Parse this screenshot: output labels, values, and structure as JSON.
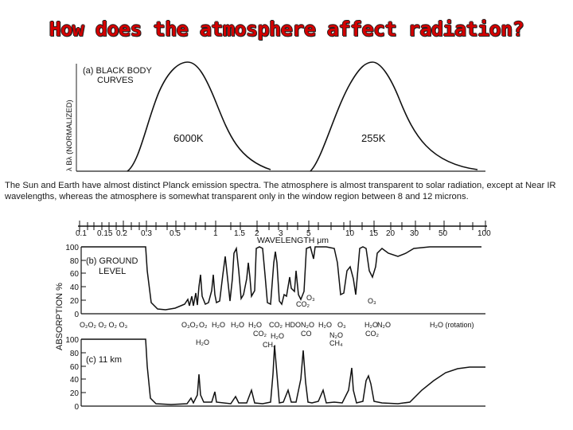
{
  "title": "How does the atmosphere affect radiation?",
  "caption": "The Sun and Earth have almost distinct Planck emission spectra.  The atmosphere is almost transparent to solar radiation, except at Near IR wavelengths, whereas the atmosphere is somewhat transparent only in the window region between 8 and 12 microns.",
  "panel_a": {
    "label": "(a)  BLACK BODY",
    "label2": "CURVES",
    "ylabel": "λ Bλ (NORMALIZED)",
    "curve1": "6000K",
    "curve2": "255K"
  },
  "axis": {
    "ticks": [
      "0.1",
      "0.15",
      "0.2",
      "0.3",
      "0.5",
      "1",
      "1.5",
      "2",
      "3",
      "5",
      "10",
      "15",
      "20",
      "30",
      "50",
      "100"
    ],
    "xlabel": "WAVELENGTH μm",
    "yticks": [
      "100",
      "80",
      "60",
      "40",
      "20",
      "0"
    ],
    "ylabel": "ABSORPTION %"
  },
  "panel_b": {
    "label": "(b)  GROUND",
    "label2": "LEVEL"
  },
  "panel_c": {
    "label": "(c)   11 km"
  },
  "gas_labels_top": {
    "left_series": "O₂O₂ O₂ O₂  O₃",
    "o3_a": "O₃",
    "co2_a": "CO₂",
    "o3_b": "O₃",
    "o3_c": "O₃"
  },
  "gas_labels_mid": {
    "g1": "O₃O₂",
    "g2": "O₂",
    "g3": "H₂O",
    "g4": "H₂O",
    "g5": "H₂O",
    "g6": "H₂O",
    "g7": "CO₂",
    "g8": "HDO",
    "g9": "N₂O",
    "g10": "H₂O",
    "g11": "O₃",
    "g12": "H₂O",
    "g13": "N₂O",
    "g14": "H₂O (rotation)"
  },
  "gas_labels_low": {
    "h2o": "H₂O",
    "co2": "CO₂",
    "h2o2": "H₂O",
    "ch4": "CH₄",
    "co": "CO",
    "n2o": "N₂O",
    "ch4b": "CH₄",
    "co2b": "CO₂"
  }
}
